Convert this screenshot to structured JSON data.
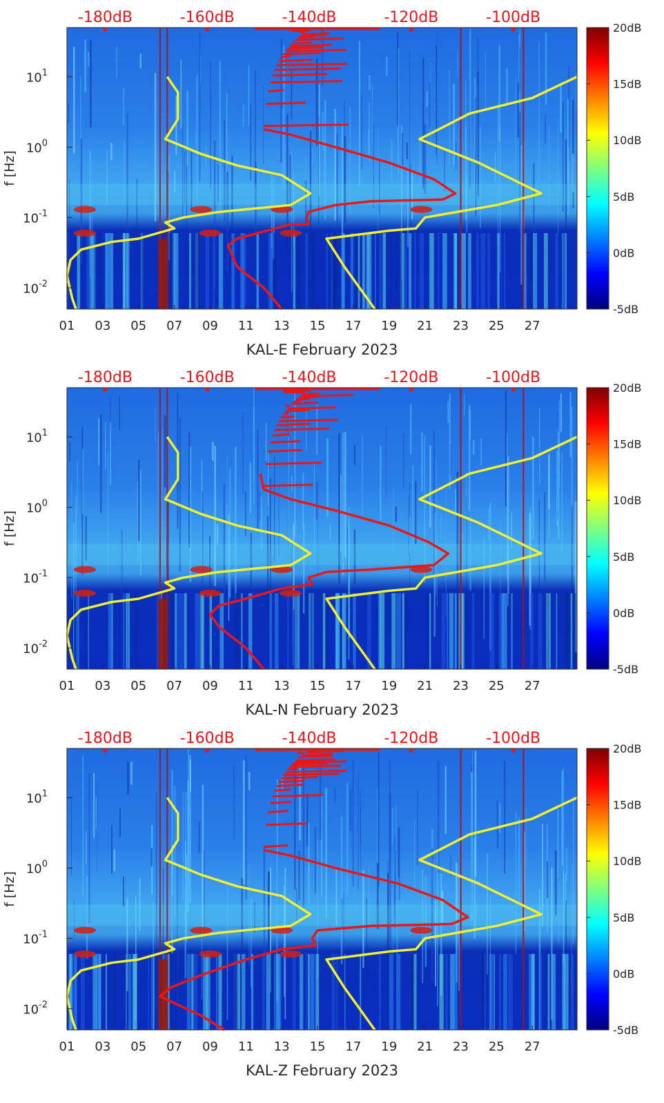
{
  "chart_data": [
    {
      "type": "heatmap",
      "title": "KAL-E February 2023",
      "xlabel": "KAL-E February 2023",
      "ylabel": "f [Hz]",
      "x_ticks": [
        "01",
        "03",
        "05",
        "07",
        "09",
        "11",
        "13",
        "15",
        "17",
        "19",
        "21",
        "23",
        "25",
        "27"
      ],
      "y_ticks": [
        {
          "exp": "10",
          "pow": "1"
        },
        {
          "exp": "10",
          "pow": "0"
        },
        {
          "exp": "10",
          "pow": "-1"
        },
        {
          "exp": "10",
          "pow": "-2"
        }
      ],
      "top_axis_ticks": [
        "-180dB",
        "-160dB",
        "-140dB",
        "-120dB",
        "-100dB"
      ],
      "colorbar_ticks": [
        "20dB",
        "15dB",
        "10dB",
        "5dB",
        "0dB",
        "-5dB"
      ],
      "xlim_day": [
        1,
        29.5
      ],
      "ylim_hz": [
        0.005,
        50
      ],
      "yellow_left": [
        [
          6.6,
          10
        ],
        [
          7.2,
          6
        ],
        [
          7.2,
          2.5
        ],
        [
          6.5,
          1.3
        ],
        [
          8.5,
          0.8
        ],
        [
          10.5,
          0.55
        ],
        [
          13,
          0.4
        ],
        [
          14.6,
          0.22
        ],
        [
          13.5,
          0.15
        ],
        [
          9.5,
          0.12
        ],
        [
          7.5,
          0.1
        ],
        [
          6.5,
          0.085
        ],
        [
          7,
          0.07
        ],
        [
          5,
          0.05
        ],
        [
          3.5,
          0.045
        ],
        [
          1.8,
          0.035
        ],
        [
          1.2,
          0.025
        ],
        [
          1.0,
          0.015
        ],
        [
          1.3,
          0.007
        ],
        [
          1.5,
          0.005
        ]
      ],
      "red_curve": [
        [
          12,
          1.8
        ],
        [
          13.5,
          1.5
        ],
        [
          16,
          1
        ],
        [
          19,
          0.6
        ],
        [
          21.5,
          0.35
        ],
        [
          22.7,
          0.22
        ],
        [
          22,
          0.18
        ],
        [
          18,
          0.17
        ],
        [
          16,
          0.15
        ],
        [
          14.5,
          0.12
        ],
        [
          14.4,
          0.1
        ],
        [
          14.5,
          0.08
        ],
        [
          13.5,
          0.08
        ],
        [
          10.5,
          0.05
        ],
        [
          10,
          0.04
        ],
        [
          10.5,
          0.02
        ],
        [
          12,
          0.01
        ],
        [
          13,
          0.005
        ]
      ],
      "yellow_right": [
        [
          29.5,
          10
        ],
        [
          27,
          5
        ],
        [
          23.5,
          3
        ],
        [
          20.7,
          1.3
        ],
        [
          24,
          0.6
        ],
        [
          27.5,
          0.22
        ],
        [
          25,
          0.15
        ],
        [
          21,
          0.1
        ],
        [
          20.5,
          0.07
        ],
        [
          19,
          0.065
        ],
        [
          15.5,
          0.05
        ],
        [
          16.5,
          0.02
        ],
        [
          18.2,
          0.005
        ]
      ]
    },
    {
      "type": "heatmap",
      "title": "KAL-N February 2023",
      "xlabel": "KAL-N February 2023",
      "ylabel": "f [Hz]",
      "x_ticks": [
        "01",
        "03",
        "05",
        "07",
        "09",
        "11",
        "13",
        "15",
        "17",
        "19",
        "21",
        "23",
        "25",
        "27"
      ],
      "y_ticks": [
        {
          "exp": "10",
          "pow": "1"
        },
        {
          "exp": "10",
          "pow": "0"
        },
        {
          "exp": "10",
          "pow": "-1"
        },
        {
          "exp": "10",
          "pow": "-2"
        }
      ],
      "top_axis_ticks": [
        "-180dB",
        "-160dB",
        "-140dB",
        "-120dB",
        "-100dB"
      ],
      "colorbar_ticks": [
        "20dB",
        "15dB",
        "10dB",
        "5dB",
        "0dB",
        "-5dB"
      ],
      "xlim_day": [
        1,
        29.5
      ],
      "ylim_hz": [
        0.005,
        50
      ],
      "yellow_left": [
        [
          6.6,
          10
        ],
        [
          7.2,
          6
        ],
        [
          7.2,
          2.5
        ],
        [
          6.5,
          1.3
        ],
        [
          8.5,
          0.8
        ],
        [
          10.5,
          0.55
        ],
        [
          13,
          0.4
        ],
        [
          14.6,
          0.22
        ],
        [
          13.5,
          0.15
        ],
        [
          9.5,
          0.12
        ],
        [
          7.5,
          0.1
        ],
        [
          6.5,
          0.085
        ],
        [
          7,
          0.07
        ],
        [
          5,
          0.05
        ],
        [
          3.5,
          0.045
        ],
        [
          1.8,
          0.035
        ],
        [
          1.2,
          0.025
        ],
        [
          1.0,
          0.015
        ],
        [
          1.3,
          0.007
        ],
        [
          1.5,
          0.005
        ]
      ],
      "red_curve": [
        [
          11.8,
          3
        ],
        [
          12,
          1.8
        ],
        [
          13.5,
          1.3
        ],
        [
          16,
          0.9
        ],
        [
          19,
          0.55
        ],
        [
          21.2,
          0.32
        ],
        [
          22.3,
          0.22
        ],
        [
          21.5,
          0.15
        ],
        [
          18,
          0.13
        ],
        [
          15.5,
          0.12
        ],
        [
          14.5,
          0.1
        ],
        [
          14.7,
          0.08
        ],
        [
          13,
          0.07
        ],
        [
          11,
          0.05
        ],
        [
          9.5,
          0.04
        ],
        [
          9,
          0.03
        ],
        [
          9.5,
          0.02
        ],
        [
          11,
          0.01
        ],
        [
          12,
          0.005
        ]
      ],
      "yellow_right": [
        [
          29.5,
          10
        ],
        [
          27,
          5
        ],
        [
          23.5,
          3
        ],
        [
          20.7,
          1.3
        ],
        [
          24,
          0.6
        ],
        [
          27.5,
          0.22
        ],
        [
          25,
          0.15
        ],
        [
          21,
          0.1
        ],
        [
          20.5,
          0.07
        ],
        [
          19,
          0.065
        ],
        [
          15.5,
          0.05
        ],
        [
          16.5,
          0.02
        ],
        [
          18.2,
          0.005
        ]
      ]
    },
    {
      "type": "heatmap",
      "title": "KAL-Z February 2023",
      "xlabel": "KAL-Z February 2023",
      "ylabel": "f [Hz]",
      "x_ticks": [
        "01",
        "03",
        "05",
        "07",
        "09",
        "11",
        "13",
        "15",
        "17",
        "19",
        "21",
        "23",
        "25",
        "27"
      ],
      "y_ticks": [
        {
          "exp": "10",
          "pow": "1"
        },
        {
          "exp": "10",
          "pow": "0"
        },
        {
          "exp": "10",
          "pow": "-1"
        },
        {
          "exp": "10",
          "pow": "-2"
        }
      ],
      "top_axis_ticks": [
        "-180dB",
        "-160dB",
        "-140dB",
        "-120dB",
        "-100dB"
      ],
      "colorbar_ticks": [
        "20dB",
        "15dB",
        "10dB",
        "5dB",
        "0dB",
        "-5dB"
      ],
      "xlim_day": [
        1,
        29.5
      ],
      "ylim_hz": [
        0.005,
        50
      ],
      "yellow_left": [
        [
          6.6,
          10
        ],
        [
          7.2,
          6
        ],
        [
          7.2,
          2.5
        ],
        [
          6.5,
          1.3
        ],
        [
          8.5,
          0.8
        ],
        [
          10.5,
          0.55
        ],
        [
          13,
          0.4
        ],
        [
          14.6,
          0.22
        ],
        [
          13.5,
          0.15
        ],
        [
          9.5,
          0.12
        ],
        [
          7.5,
          0.1
        ],
        [
          6.5,
          0.085
        ],
        [
          7,
          0.07
        ],
        [
          5,
          0.05
        ],
        [
          3.5,
          0.045
        ],
        [
          1.8,
          0.035
        ],
        [
          1.2,
          0.025
        ],
        [
          1.0,
          0.015
        ],
        [
          1.3,
          0.007
        ],
        [
          1.5,
          0.005
        ]
      ],
      "red_curve": [
        [
          12,
          1.8
        ],
        [
          13.5,
          1.5
        ],
        [
          16,
          1
        ],
        [
          19.5,
          0.6
        ],
        [
          22,
          0.35
        ],
        [
          23.4,
          0.2
        ],
        [
          22.5,
          0.16
        ],
        [
          18,
          0.15
        ],
        [
          15,
          0.13
        ],
        [
          14.7,
          0.1
        ],
        [
          14.9,
          0.08
        ],
        [
          13,
          0.07
        ],
        [
          11,
          0.05
        ],
        [
          8.5,
          0.03
        ],
        [
          6.8,
          0.02
        ],
        [
          6.2,
          0.015
        ],
        [
          7,
          0.012
        ],
        [
          8.5,
          0.008
        ],
        [
          9.8,
          0.005
        ]
      ],
      "yellow_right": [
        [
          29.5,
          10
        ],
        [
          27,
          5
        ],
        [
          23.5,
          3
        ],
        [
          20.7,
          1.3
        ],
        [
          24,
          0.6
        ],
        [
          27.5,
          0.22
        ],
        [
          25,
          0.15
        ],
        [
          21,
          0.1
        ],
        [
          20.5,
          0.07
        ],
        [
          19,
          0.065
        ],
        [
          15.5,
          0.05
        ],
        [
          16.5,
          0.02
        ],
        [
          18.2,
          0.005
        ]
      ]
    }
  ]
}
